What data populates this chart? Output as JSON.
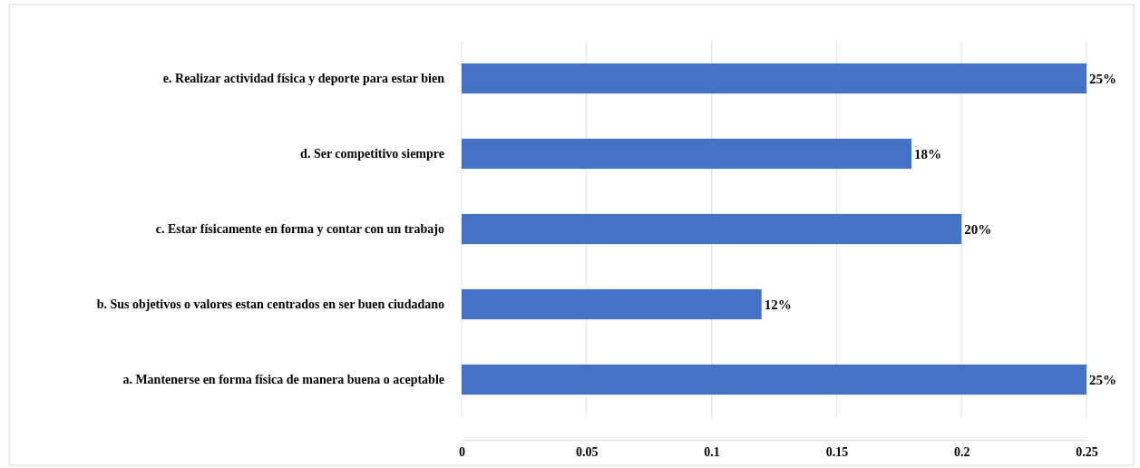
{
  "chart_data": {
    "type": "bar",
    "orientation": "horizontal",
    "categories": [
      "e. Realizar actividad física y deporte para estar bien",
      "d. Ser competitivo siempre",
      "c. Estar físicamente en forma y contar con un trabajo",
      "b. Sus objetivos o valores estan centrados en ser buen ciudadano",
      "a. Mantenerse en forma física de manera buena o aceptable"
    ],
    "values": [
      0.25,
      0.18,
      0.2,
      0.12,
      0.25
    ],
    "value_labels": [
      "25%",
      "18%",
      "20%",
      "12%",
      "25%"
    ],
    "color": "#4472c4",
    "xlim": [
      0,
      0.25
    ],
    "xticks": [
      0,
      0.05,
      0.1,
      0.15,
      0.2,
      0.25
    ],
    "grid": "x"
  }
}
